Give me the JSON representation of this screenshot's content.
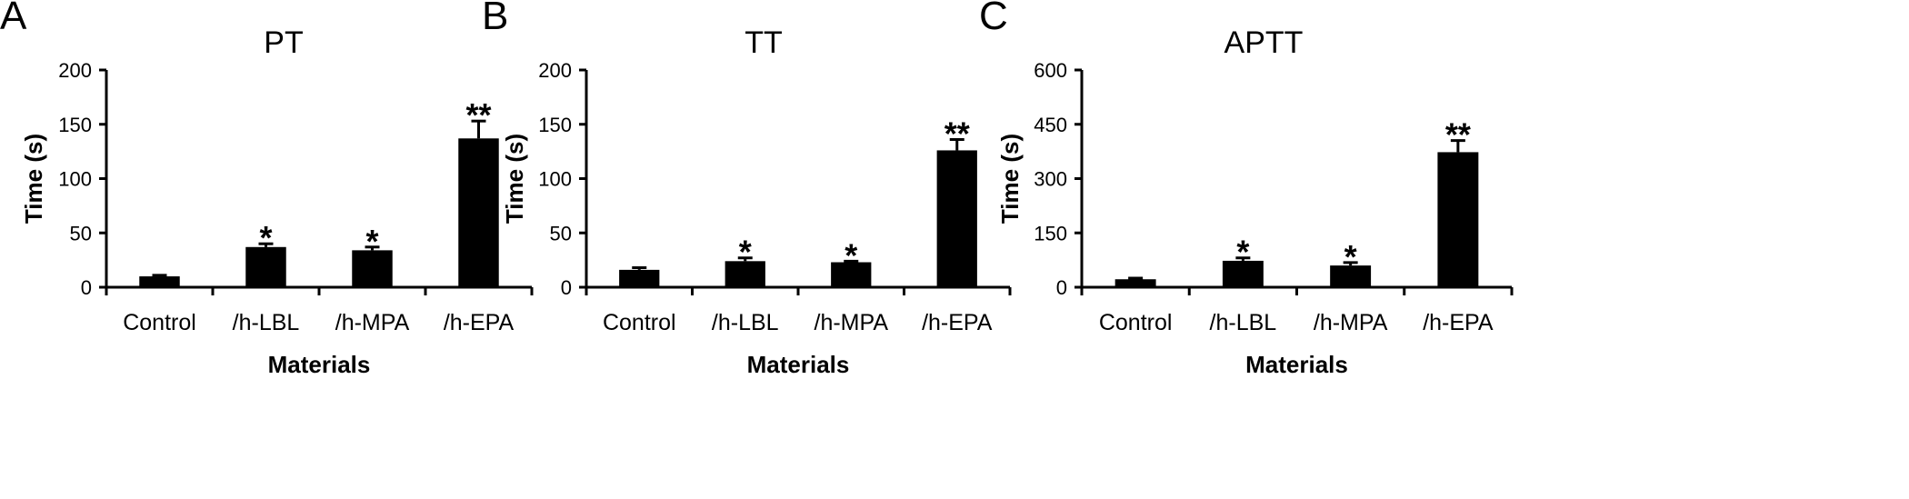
{
  "chart_data": [
    {
      "panel": "A",
      "type": "bar",
      "title": "PT",
      "xlabel": "Materials",
      "ylabel": "Time (s)",
      "ylim": [
        0,
        200
      ],
      "yticks": [
        "0",
        "50",
        "100",
        "150",
        "200"
      ],
      "categories": [
        "Control",
        "/h-LBL",
        "/h-MPA",
        "/h-EPA"
      ],
      "values": [
        10,
        37,
        34,
        137
      ],
      "errors": [
        1,
        3,
        3,
        16
      ],
      "significance": [
        "",
        "*",
        "*",
        "**"
      ],
      "grid": false,
      "bar_color": "#000000"
    },
    {
      "panel": "B",
      "type": "bar",
      "title": "TT",
      "xlabel": "Materials",
      "ylabel": "Time (s)",
      "ylim": [
        0,
        200
      ],
      "yticks": [
        "0",
        "50",
        "100",
        "150",
        "200"
      ],
      "categories": [
        "Control",
        "/h-LBL",
        "/h-MPA",
        "/h-EPA"
      ],
      "values": [
        16,
        24,
        23,
        126
      ],
      "errors": [
        2,
        3,
        1,
        10
      ],
      "significance": [
        "",
        "*",
        "*",
        "**"
      ],
      "grid": false,
      "bar_color": "#000000"
    },
    {
      "panel": "C",
      "type": "bar",
      "title": "APTT",
      "xlabel": "Materials",
      "ylabel": "Time (s)",
      "ylim": [
        0,
        600
      ],
      "yticks": [
        "0",
        "150",
        "300",
        "450",
        "600"
      ],
      "categories": [
        "Control",
        "/h-LBL",
        "/h-MPA",
        "/h-EPA"
      ],
      "values": [
        22,
        73,
        60,
        373
      ],
      "errors": [
        3,
        8,
        8,
        32
      ],
      "significance": [
        "",
        "*",
        "*",
        "**"
      ],
      "grid": false,
      "bar_color": "#000000"
    }
  ]
}
